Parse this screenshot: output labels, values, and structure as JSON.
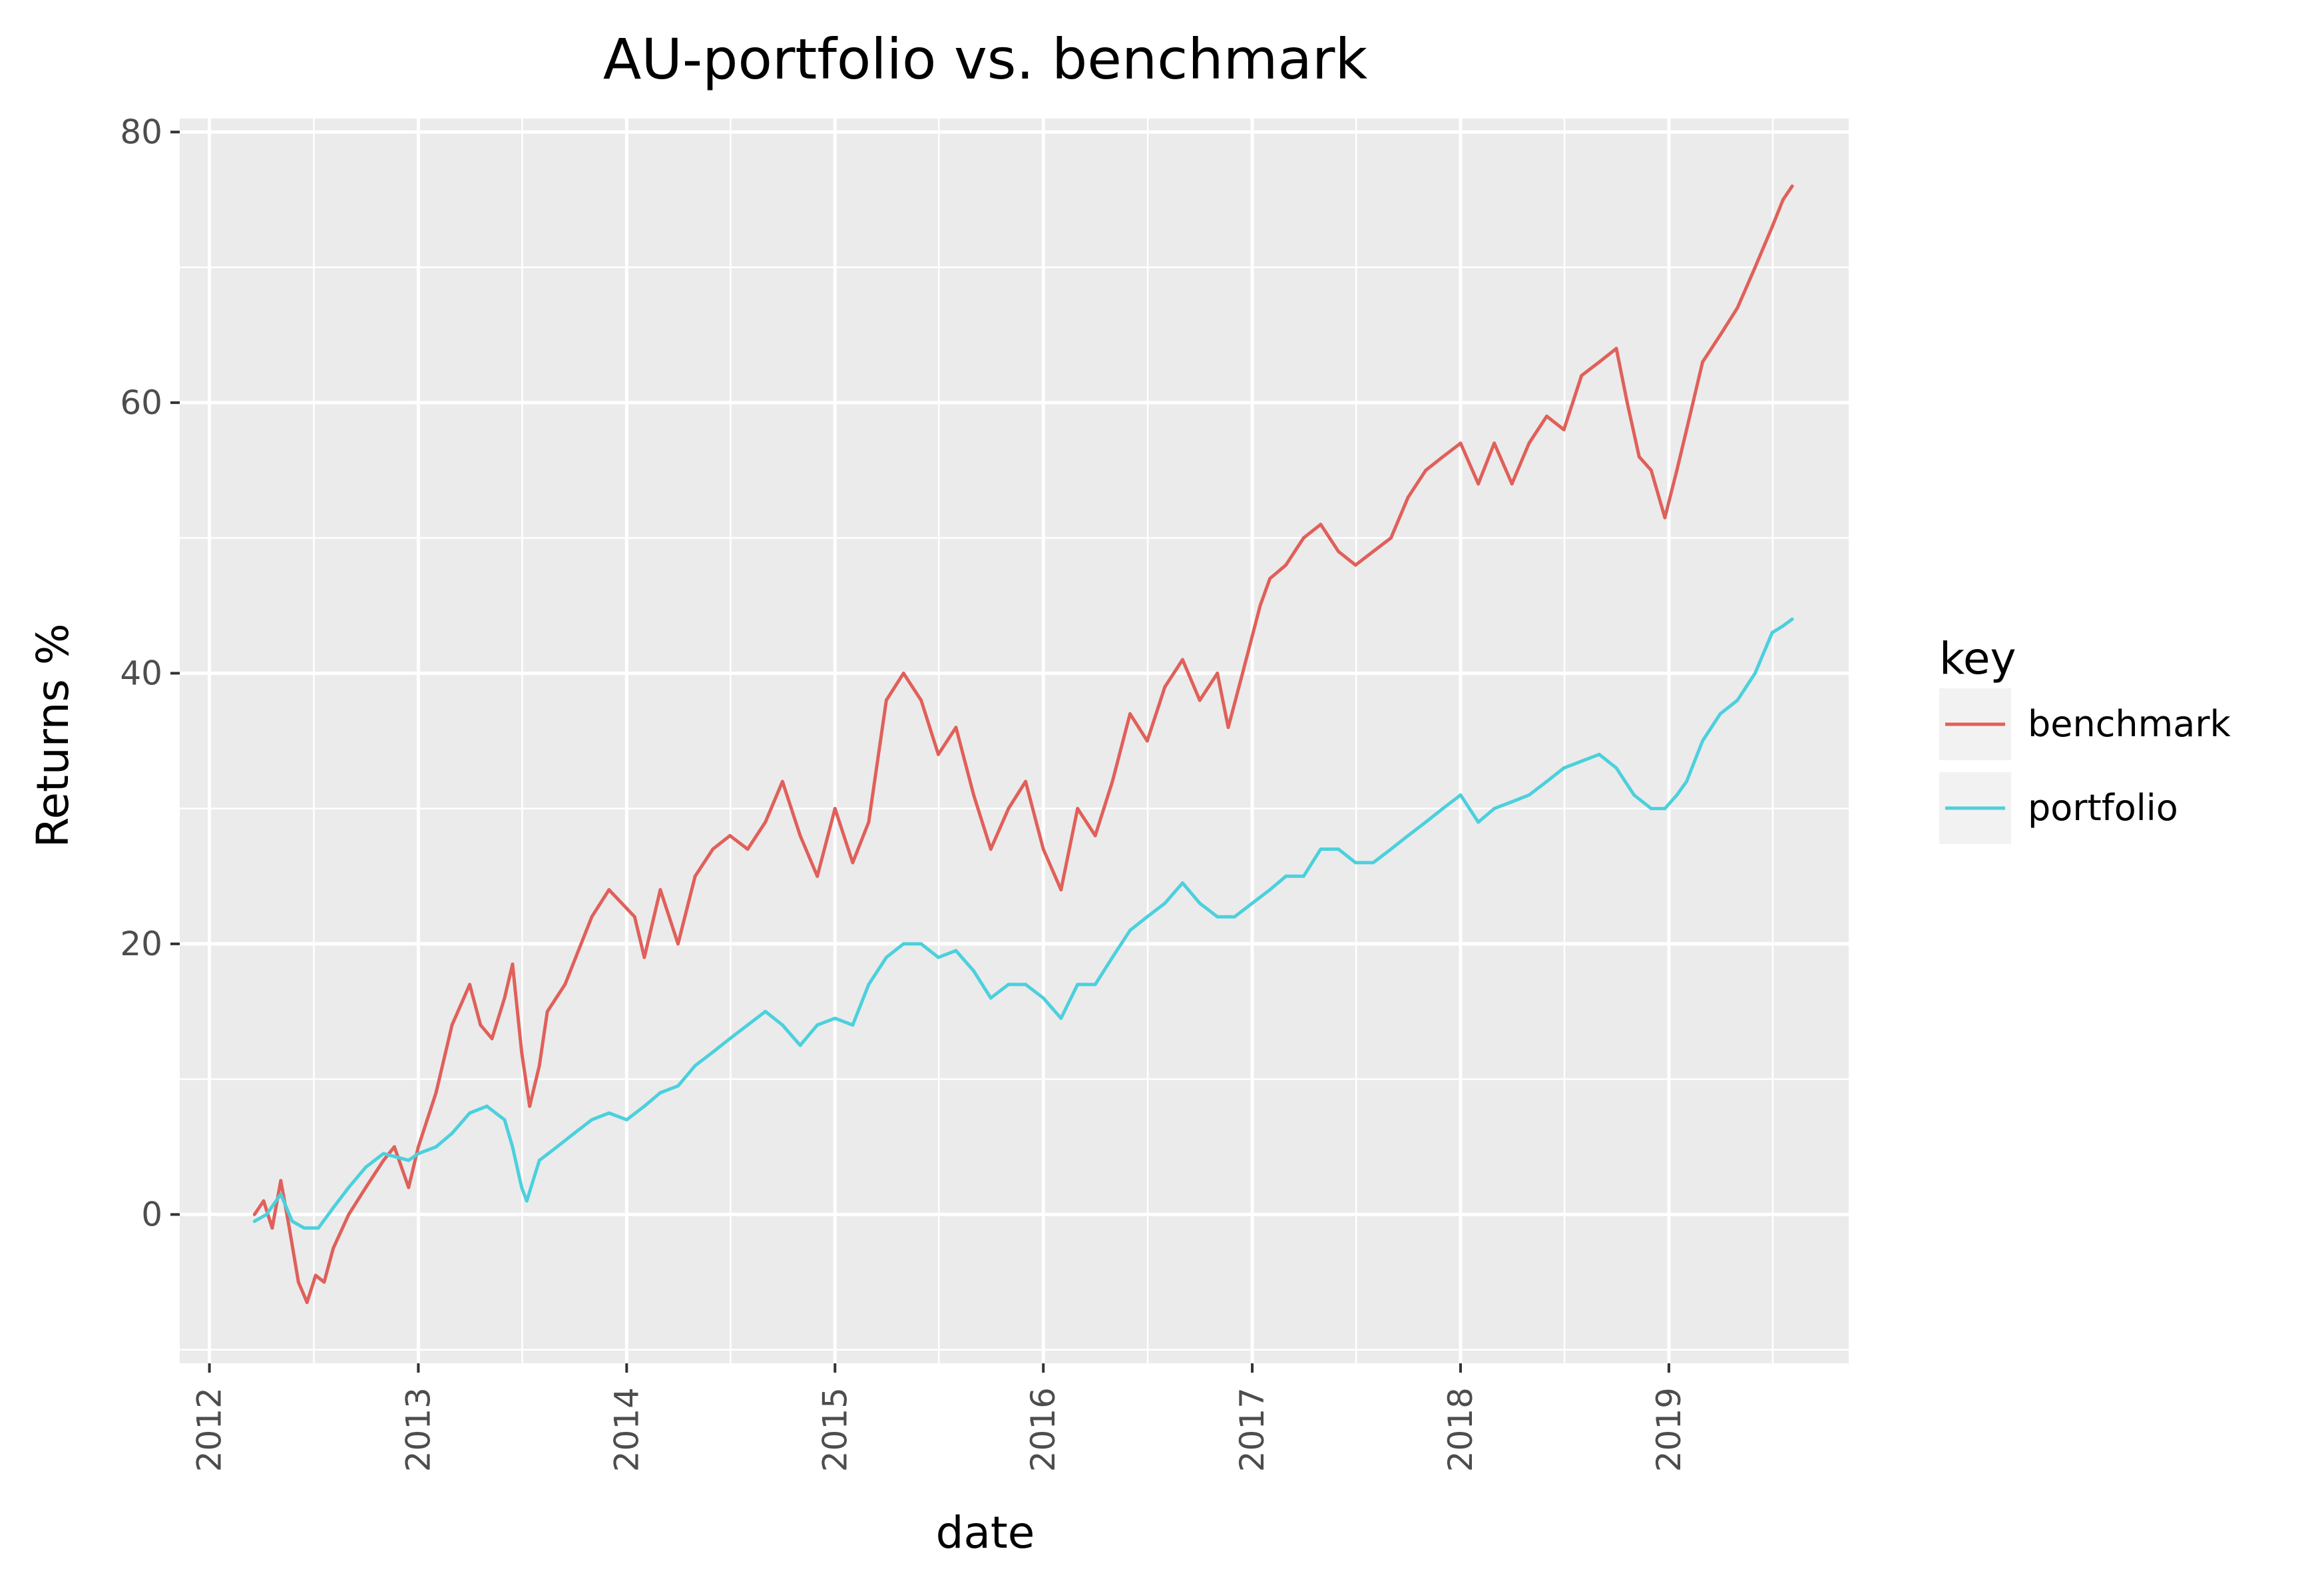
{
  "chart_data": {
    "type": "line",
    "title": "AU-portfolio vs. benchmark",
    "xlabel": "date",
    "ylabel": "Returns %",
    "x_ticks": [
      "2012",
      "2013",
      "2014",
      "2015",
      "2016",
      "2017",
      "2018",
      "2019"
    ],
    "y_ticks": [
      "0",
      "20",
      "40",
      "60",
      "80"
    ],
    "xlim": [
      "2011-11-10",
      "2019-11-12"
    ],
    "ylim": [
      -11,
      81
    ],
    "grid": true,
    "legend": {
      "title": "key",
      "position": "right"
    },
    "series": [
      {
        "name": "benchmark",
        "color": "#e0605a",
        "points": [
          [
            "2012-03-20",
            0
          ],
          [
            "2012-04-05",
            1
          ],
          [
            "2012-04-20",
            -1
          ],
          [
            "2012-05-05",
            2.5
          ],
          [
            "2012-05-20",
            -1
          ],
          [
            "2012-06-05",
            -5
          ],
          [
            "2012-06-20",
            -6.5
          ],
          [
            "2012-07-05",
            -4.5
          ],
          [
            "2012-07-20",
            -5
          ],
          [
            "2012-08-05",
            -2.5
          ],
          [
            "2012-09-01",
            0
          ],
          [
            "2012-10-01",
            2
          ],
          [
            "2012-11-01",
            4
          ],
          [
            "2012-11-20",
            5
          ],
          [
            "2012-12-15",
            2
          ],
          [
            "2013-01-01",
            5
          ],
          [
            "2013-02-01",
            9
          ],
          [
            "2013-03-01",
            14
          ],
          [
            "2013-04-01",
            17
          ],
          [
            "2013-04-20",
            14
          ],
          [
            "2013-05-10",
            13
          ],
          [
            "2013-06-01",
            16
          ],
          [
            "2013-06-15",
            18.5
          ],
          [
            "2013-07-01",
            12
          ],
          [
            "2013-07-15",
            8
          ],
          [
            "2013-08-01",
            11
          ],
          [
            "2013-08-15",
            15
          ],
          [
            "2013-09-15",
            17
          ],
          [
            "2013-11-01",
            22
          ],
          [
            "2013-12-01",
            24
          ],
          [
            "2014-01-15",
            22
          ],
          [
            "2014-02-01",
            19
          ],
          [
            "2014-03-01",
            24
          ],
          [
            "2014-04-01",
            20
          ],
          [
            "2014-05-01",
            25
          ],
          [
            "2014-06-01",
            27
          ],
          [
            "2014-07-01",
            28
          ],
          [
            "2014-08-01",
            27
          ],
          [
            "2014-09-01",
            29
          ],
          [
            "2014-10-01",
            32
          ],
          [
            "2014-11-01",
            28
          ],
          [
            "2014-12-01",
            25
          ],
          [
            "2015-01-01",
            30
          ],
          [
            "2015-02-01",
            26
          ],
          [
            "2015-03-01",
            29
          ],
          [
            "2015-04-01",
            38
          ],
          [
            "2015-05-01",
            40
          ],
          [
            "2015-06-01",
            38
          ],
          [
            "2015-07-01",
            34
          ],
          [
            "2015-08-01",
            36
          ],
          [
            "2015-09-01",
            31
          ],
          [
            "2015-10-01",
            27
          ],
          [
            "2015-11-01",
            30
          ],
          [
            "2015-12-01",
            32
          ],
          [
            "2016-01-01",
            27
          ],
          [
            "2016-02-01",
            24
          ],
          [
            "2016-03-01",
            30
          ],
          [
            "2016-04-01",
            28
          ],
          [
            "2016-05-01",
            32
          ],
          [
            "2016-06-01",
            37
          ],
          [
            "2016-07-01",
            35
          ],
          [
            "2016-08-01",
            39
          ],
          [
            "2016-09-01",
            41
          ],
          [
            "2016-10-01",
            38
          ],
          [
            "2016-11-01",
            40
          ],
          [
            "2016-11-20",
            36
          ],
          [
            "2016-12-15",
            40
          ],
          [
            "2017-01-15",
            45
          ],
          [
            "2017-02-01",
            47
          ],
          [
            "2017-03-01",
            48
          ],
          [
            "2017-04-01",
            50
          ],
          [
            "2017-05-01",
            51
          ],
          [
            "2017-06-01",
            49
          ],
          [
            "2017-07-01",
            48
          ],
          [
            "2017-08-01",
            49
          ],
          [
            "2017-09-01",
            50
          ],
          [
            "2017-10-01",
            53
          ],
          [
            "2017-11-01",
            55
          ],
          [
            "2017-12-01",
            56
          ],
          [
            "2018-01-01",
            57
          ],
          [
            "2018-02-01",
            54
          ],
          [
            "2018-03-01",
            57
          ],
          [
            "2018-04-01",
            54
          ],
          [
            "2018-05-01",
            57
          ],
          [
            "2018-06-01",
            59
          ],
          [
            "2018-07-01",
            58
          ],
          [
            "2018-08-01",
            62
          ],
          [
            "2018-09-01",
            63
          ],
          [
            "2018-10-01",
            64
          ],
          [
            "2018-10-20",
            60
          ],
          [
            "2018-11-10",
            56
          ],
          [
            "2018-12-01",
            55
          ],
          [
            "2018-12-25",
            51.5
          ],
          [
            "2019-01-15",
            55
          ],
          [
            "2019-02-01",
            58
          ],
          [
            "2019-03-01",
            63
          ],
          [
            "2019-04-01",
            65
          ],
          [
            "2019-05-01",
            67
          ],
          [
            "2019-06-01",
            70
          ],
          [
            "2019-07-01",
            73
          ],
          [
            "2019-07-20",
            75
          ],
          [
            "2019-08-05",
            76
          ]
        ]
      },
      {
        "name": "portfolio",
        "color": "#4cd0dd",
        "points": [
          [
            "2012-03-20",
            -0.5
          ],
          [
            "2012-04-10",
            0
          ],
          [
            "2012-05-05",
            1.5
          ],
          [
            "2012-05-25",
            -0.5
          ],
          [
            "2012-06-15",
            -1
          ],
          [
            "2012-07-10",
            -1
          ],
          [
            "2012-08-05",
            0.5
          ],
          [
            "2012-09-01",
            2
          ],
          [
            "2012-10-01",
            3.5
          ],
          [
            "2012-11-01",
            4.5
          ],
          [
            "2012-12-15",
            4
          ],
          [
            "2013-01-01",
            4.5
          ],
          [
            "2013-02-01",
            5
          ],
          [
            "2013-03-01",
            6
          ],
          [
            "2013-04-01",
            7.5
          ],
          [
            "2013-05-01",
            8
          ],
          [
            "2013-06-01",
            7
          ],
          [
            "2013-06-15",
            5
          ],
          [
            "2013-07-01",
            2
          ],
          [
            "2013-07-10",
            1
          ],
          [
            "2013-08-01",
            4
          ],
          [
            "2013-09-01",
            5
          ],
          [
            "2013-10-01",
            6
          ],
          [
            "2013-11-01",
            7
          ],
          [
            "2013-12-01",
            7.5
          ],
          [
            "2014-01-01",
            7
          ],
          [
            "2014-02-01",
            8
          ],
          [
            "2014-03-01",
            9
          ],
          [
            "2014-04-01",
            9.5
          ],
          [
            "2014-05-01",
            11
          ],
          [
            "2014-06-01",
            12
          ],
          [
            "2014-07-01",
            13
          ],
          [
            "2014-08-01",
            14
          ],
          [
            "2014-09-01",
            15
          ],
          [
            "2014-10-01",
            14
          ],
          [
            "2014-11-01",
            12.5
          ],
          [
            "2014-12-01",
            14
          ],
          [
            "2015-01-01",
            14.5
          ],
          [
            "2015-02-01",
            14
          ],
          [
            "2015-03-01",
            17
          ],
          [
            "2015-04-01",
            19
          ],
          [
            "2015-05-01",
            20
          ],
          [
            "2015-06-01",
            20
          ],
          [
            "2015-07-01",
            19
          ],
          [
            "2015-08-01",
            19.5
          ],
          [
            "2015-09-01",
            18
          ],
          [
            "2015-10-01",
            16
          ],
          [
            "2015-11-01",
            17
          ],
          [
            "2015-12-01",
            17
          ],
          [
            "2016-01-01",
            16
          ],
          [
            "2016-02-01",
            14.5
          ],
          [
            "2016-03-01",
            17
          ],
          [
            "2016-04-01",
            17
          ],
          [
            "2016-05-01",
            19
          ],
          [
            "2016-06-01",
            21
          ],
          [
            "2016-07-01",
            22
          ],
          [
            "2016-08-01",
            23
          ],
          [
            "2016-09-01",
            24.5
          ],
          [
            "2016-10-01",
            23
          ],
          [
            "2016-11-01",
            22
          ],
          [
            "2016-12-01",
            22
          ],
          [
            "2017-01-01",
            23
          ],
          [
            "2017-02-01",
            24
          ],
          [
            "2017-03-01",
            25
          ],
          [
            "2017-04-01",
            25
          ],
          [
            "2017-05-01",
            27
          ],
          [
            "2017-06-01",
            27
          ],
          [
            "2017-07-01",
            26
          ],
          [
            "2017-08-01",
            26
          ],
          [
            "2017-09-01",
            27
          ],
          [
            "2017-10-01",
            28
          ],
          [
            "2017-11-01",
            29
          ],
          [
            "2017-12-01",
            30
          ],
          [
            "2018-01-01",
            31
          ],
          [
            "2018-02-01",
            29
          ],
          [
            "2018-03-01",
            30
          ],
          [
            "2018-04-01",
            30.5
          ],
          [
            "2018-05-01",
            31
          ],
          [
            "2018-06-01",
            32
          ],
          [
            "2018-07-01",
            33
          ],
          [
            "2018-08-01",
            33.5
          ],
          [
            "2018-09-01",
            34
          ],
          [
            "2018-10-01",
            33
          ],
          [
            "2018-11-01",
            31
          ],
          [
            "2018-12-01",
            30
          ],
          [
            "2018-12-25",
            30
          ],
          [
            "2019-01-15",
            31
          ],
          [
            "2019-02-01",
            32
          ],
          [
            "2019-03-01",
            35
          ],
          [
            "2019-04-01",
            37
          ],
          [
            "2019-05-01",
            38
          ],
          [
            "2019-06-01",
            40
          ],
          [
            "2019-07-01",
            43
          ],
          [
            "2019-07-20",
            43.5
          ],
          [
            "2019-08-05",
            44
          ]
        ]
      }
    ]
  }
}
